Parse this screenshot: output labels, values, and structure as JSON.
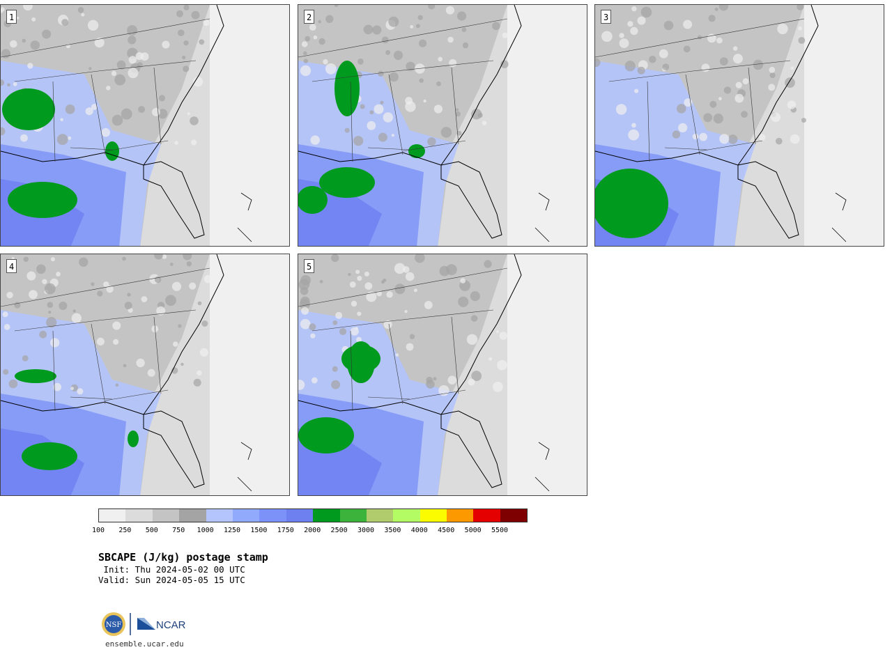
{
  "panels": [
    {
      "label": "1",
      "variant": 1
    },
    {
      "label": "2",
      "variant": 2
    },
    {
      "label": "3",
      "variant": 3
    },
    {
      "label": "4",
      "variant": 4
    },
    {
      "label": "5",
      "variant": 5
    }
  ],
  "colorbar": {
    "colors": [
      "#f0f0f0",
      "#dcdcdc",
      "#c4c4c4",
      "#a4a4a4",
      "#b4c4fc",
      "#92aafc",
      "#7c92f8",
      "#6e80f0",
      "#009b1e",
      "#3cb43c",
      "#b0cc6c",
      "#b4fc64",
      "#fcfc00",
      "#fc9800",
      "#e40000",
      "#7e0000"
    ],
    "ticks": [
      "100",
      "250",
      "500",
      "750",
      "1000",
      "1250",
      "1500",
      "1750",
      "2000",
      "2500",
      "3000",
      "3500",
      "4000",
      "4500",
      "5000",
      "5500"
    ]
  },
  "title": "SBCAPE (J/kg) postage stamp",
  "init_line": " Init: Thu 2024-05-02 00 UTC",
  "valid_line": "Valid: Sun 2024-05-05 15 UTC",
  "logo": {
    "nsf_text": "NSF",
    "ncar_text": "NCAR"
  },
  "site": "ensemble.ucar.edu"
}
